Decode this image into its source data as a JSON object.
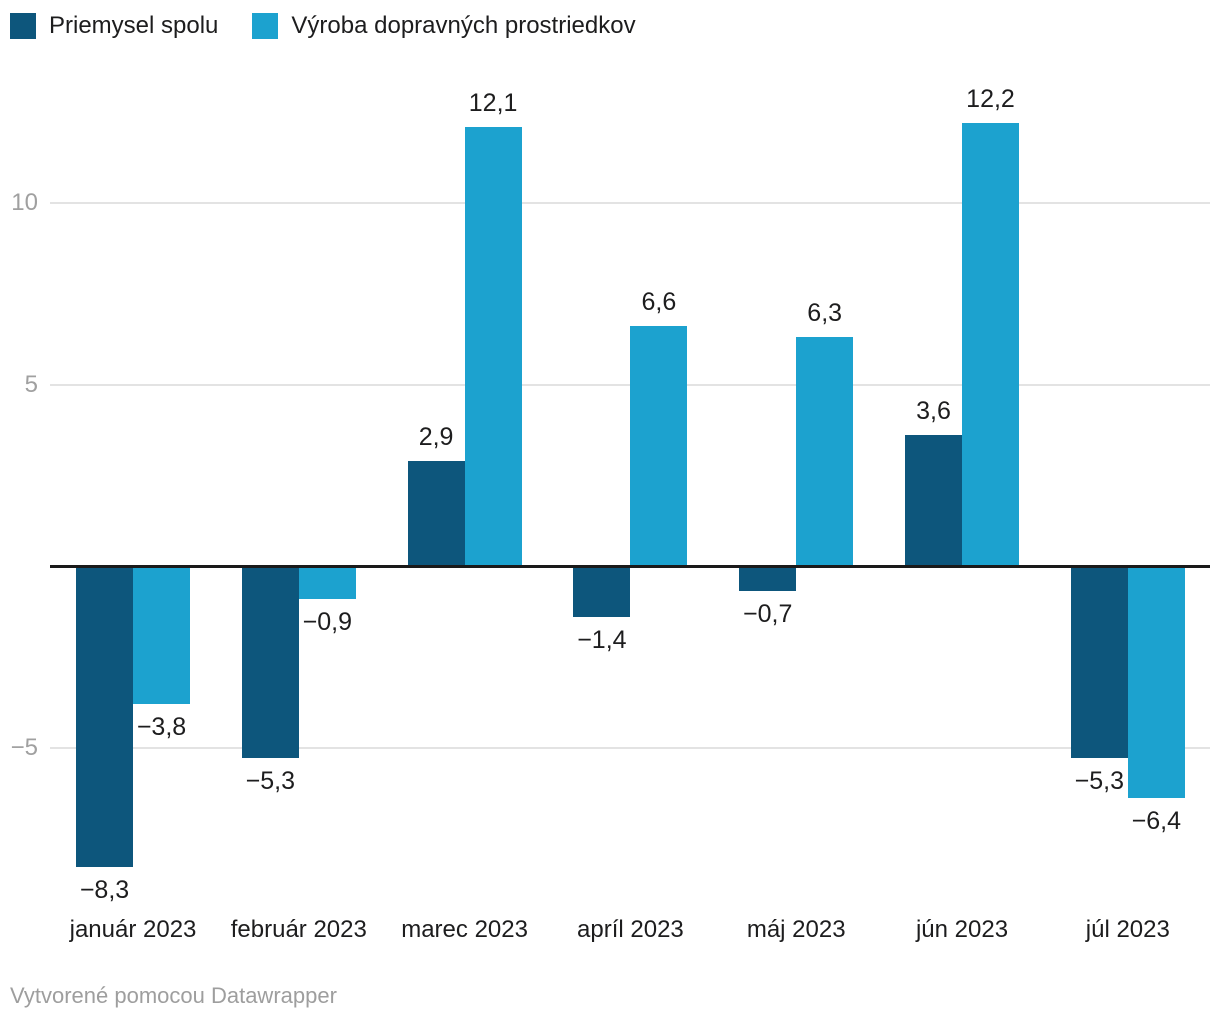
{
  "chart_data": {
    "type": "bar",
    "categories": [
      "január 2023",
      "február 2023",
      "marec 2023",
      "apríl 2023",
      "máj 2023",
      "jún 2023",
      "júl 2023"
    ],
    "series": [
      {
        "name": "Priemysel spolu",
        "color": "#0d567c",
        "values": [
          -8.3,
          -5.3,
          2.9,
          -1.4,
          -0.7,
          3.6,
          -5.3
        ],
        "labels": [
          "−8,3",
          "−5,3",
          "2,9",
          "−1,4",
          "−0,7",
          "3,6",
          "−5,3"
        ]
      },
      {
        "name": "Výroba dopravných prostriedkov",
        "color": "#1ca2cf",
        "values": [
          -3.8,
          -0.9,
          12.1,
          6.6,
          6.3,
          12.2,
          -6.4
        ],
        "labels": [
          "−3,8",
          "−0,9",
          "12,1",
          "6,6",
          "6,3",
          "12,2",
          "−6,4"
        ]
      }
    ],
    "yticks": [
      {
        "value": 10,
        "label": "10"
      },
      {
        "value": 5,
        "label": "5"
      },
      {
        "value": -5,
        "label": "−5"
      }
    ],
    "ylim": [
      -9.5,
      13.5
    ],
    "grid": true,
    "zero_line_color": "#1a1a1a",
    "gridline_color": "#e3e3e3",
    "tick_label_color": "#a0a0a0",
    "legend_position": "top-left",
    "title": "",
    "xlabel": "",
    "ylabel": ""
  },
  "footer": {
    "attribution": "Vytvorené pomocou Datawrapper"
  }
}
